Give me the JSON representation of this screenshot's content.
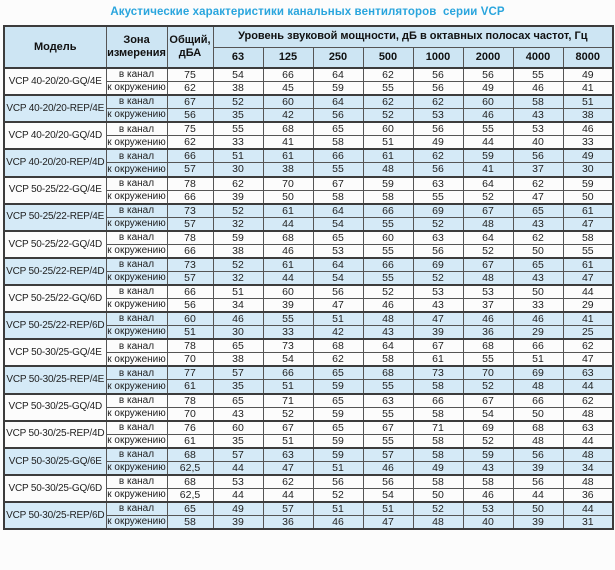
{
  "page": {
    "title": "Акустические характеристики канальных вентиляторов  серии VCP"
  },
  "colors": {
    "accent_title": "#2aa5dd",
    "header_bg": "#cde5f3",
    "band_bg": "#d5eaf7",
    "border": "#3c3c3c"
  },
  "table": {
    "header": {
      "model": "Модель",
      "zone": "Зона\nизмерения",
      "total": "Общий,\nдБА",
      "group": "Уровень звуковой мощности, дБ в октавных полосах частот, Гц",
      "frequencies": [
        "63",
        "125",
        "250",
        "500",
        "1000",
        "2000",
        "4000",
        "8000"
      ]
    },
    "models": [
      {
        "model": "VCP 40-20/20-GQ/4E",
        "shaded": false,
        "measurements": [
          {
            "zone": "в канал",
            "total": "75",
            "levels": [
              "54",
              "66",
              "64",
              "62",
              "56",
              "56",
              "55",
              "49"
            ]
          },
          {
            "zone": "к окружению",
            "total": "62",
            "levels": [
              "38",
              "45",
              "59",
              "55",
              "56",
              "49",
              "46",
              "41"
            ]
          }
        ]
      },
      {
        "model": "VCP 40-20/20-REP/4E",
        "shaded": true,
        "measurements": [
          {
            "zone": "в канал",
            "total": "67",
            "levels": [
              "52",
              "60",
              "64",
              "62",
              "62",
              "60",
              "58",
              "51"
            ]
          },
          {
            "zone": "к окружению",
            "total": "56",
            "levels": [
              "35",
              "42",
              "56",
              "52",
              "53",
              "46",
              "43",
              "38"
            ]
          }
        ]
      },
      {
        "model": "VCP 40-20/20-GQ/4D",
        "shaded": false,
        "measurements": [
          {
            "zone": "в канал",
            "total": "75",
            "levels": [
              "55",
              "68",
              "65",
              "60",
              "56",
              "55",
              "53",
              "46"
            ]
          },
          {
            "zone": "к окружению",
            "total": "62",
            "levels": [
              "33",
              "41",
              "58",
              "51",
              "49",
              "44",
              "40",
              "33"
            ]
          }
        ]
      },
      {
        "model": "VCP 40-20/20-REP/4D",
        "shaded": true,
        "measurements": [
          {
            "zone": "в канал",
            "total": "66",
            "levels": [
              "51",
              "61",
              "66",
              "61",
              "62",
              "59",
              "56",
              "49"
            ]
          },
          {
            "zone": "к окружению",
            "total": "57",
            "levels": [
              "30",
              "38",
              "55",
              "48",
              "56",
              "41",
              "37",
              "30"
            ]
          }
        ]
      },
      {
        "model": "VCP 50-25/22-GQ/4E",
        "shaded": false,
        "measurements": [
          {
            "zone": "в канал",
            "total": "78",
            "levels": [
              "62",
              "70",
              "67",
              "59",
              "63",
              "64",
              "62",
              "59"
            ]
          },
          {
            "zone": "к окружению",
            "total": "66",
            "levels": [
              "39",
              "50",
              "58",
              "58",
              "55",
              "52",
              "47",
              "50"
            ]
          }
        ]
      },
      {
        "model": "VCP 50-25/22-REP/4E",
        "shaded": true,
        "measurements": [
          {
            "zone": "в канал",
            "total": "73",
            "levels": [
              "52",
              "61",
              "64",
              "66",
              "69",
              "67",
              "65",
              "61"
            ]
          },
          {
            "zone": "к окружению",
            "total": "57",
            "levels": [
              "32",
              "44",
              "54",
              "55",
              "52",
              "48",
              "43",
              "47"
            ]
          }
        ]
      },
      {
        "model": "VCP 50-25/22-GQ/4D",
        "shaded": false,
        "measurements": [
          {
            "zone": "в канал",
            "total": "78",
            "levels": [
              "59",
              "68",
              "65",
              "60",
              "63",
              "64",
              "62",
              "58"
            ]
          },
          {
            "zone": "к окружению",
            "total": "66",
            "levels": [
              "38",
              "46",
              "53",
              "55",
              "56",
              "52",
              "50",
              "55"
            ]
          }
        ]
      },
      {
        "model": "VCP 50-25/22-REP/4D",
        "shaded": true,
        "measurements": [
          {
            "zone": "в канал",
            "total": "73",
            "levels": [
              "52",
              "61",
              "64",
              "66",
              "69",
              "67",
              "65",
              "61"
            ]
          },
          {
            "zone": "к окружению",
            "total": "57",
            "levels": [
              "32",
              "44",
              "54",
              "55",
              "52",
              "48",
              "43",
              "47"
            ]
          }
        ]
      },
      {
        "model": "VCP 50-25/22-GQ/6D",
        "shaded": false,
        "measurements": [
          {
            "zone": "в канал",
            "total": "66",
            "levels": [
              "51",
              "60",
              "56",
              "52",
              "53",
              "53",
              "50",
              "44"
            ]
          },
          {
            "zone": "к окружению",
            "total": "56",
            "levels": [
              "34",
              "39",
              "47",
              "46",
              "43",
              "37",
              "33",
              "29"
            ]
          }
        ]
      },
      {
        "model": "VCP 50-25/22-REP/6D",
        "shaded": true,
        "measurements": [
          {
            "zone": "в канал",
            "total": "60",
            "levels": [
              "46",
              "55",
              "51",
              "48",
              "47",
              "46",
              "46",
              "41"
            ]
          },
          {
            "zone": "к окружению",
            "total": "51",
            "levels": [
              "30",
              "33",
              "42",
              "43",
              "39",
              "36",
              "29",
              "25"
            ]
          }
        ]
      },
      {
        "model": "VCP 50-30/25-GQ/4E",
        "shaded": false,
        "measurements": [
          {
            "zone": "в канал",
            "total": "78",
            "levels": [
              "65",
              "73",
              "68",
              "64",
              "67",
              "68",
              "66",
              "62"
            ]
          },
          {
            "zone": "к окружению",
            "total": "70",
            "levels": [
              "38",
              "54",
              "62",
              "58",
              "61",
              "55",
              "51",
              "47"
            ]
          }
        ]
      },
      {
        "model": "VCP 50-30/25-REP/4E",
        "shaded": true,
        "measurements": [
          {
            "zone": "в канал",
            "total": "77",
            "levels": [
              "57",
              "66",
              "65",
              "68",
              "73",
              "70",
              "69",
              "63"
            ]
          },
          {
            "zone": "к окружению",
            "total": "61",
            "levels": [
              "35",
              "51",
              "59",
              "55",
              "58",
              "52",
              "48",
              "44"
            ]
          }
        ]
      },
      {
        "model": "VCP 50-30/25-GQ/4D",
        "shaded": false,
        "measurements": [
          {
            "zone": "в канал",
            "total": "78",
            "levels": [
              "65",
              "71",
              "65",
              "63",
              "66",
              "67",
              "66",
              "62"
            ]
          },
          {
            "zone": "к окружению",
            "total": "70",
            "levels": [
              "43",
              "52",
              "59",
              "55",
              "58",
              "54",
              "50",
              "48"
            ]
          }
        ]
      },
      {
        "model": "VCP 50-30/25-REP/4D",
        "shaded": false,
        "measurements": [
          {
            "zone": "в канал",
            "total": "76",
            "levels": [
              "60",
              "67",
              "65",
              "67",
              "71",
              "69",
              "68",
              "63"
            ]
          },
          {
            "zone": "к окружению",
            "total": "61",
            "levels": [
              "35",
              "51",
              "59",
              "55",
              "58",
              "52",
              "48",
              "44"
            ]
          }
        ]
      },
      {
        "model": "VCP 50-30/25-GQ/6E",
        "shaded": true,
        "measurements": [
          {
            "zone": "в канал",
            "total": "68",
            "levels": [
              "57",
              "63",
              "59",
              "57",
              "58",
              "59",
              "56",
              "48"
            ]
          },
          {
            "zone": "к окружению",
            "total": "62,5",
            "levels": [
              "44",
              "47",
              "51",
              "46",
              "49",
              "43",
              "39",
              "34"
            ]
          }
        ]
      },
      {
        "model": "VCP 50-30/25-GQ/6D",
        "shaded": false,
        "measurements": [
          {
            "zone": "в канал",
            "total": "68",
            "levels": [
              "53",
              "62",
              "56",
              "56",
              "58",
              "58",
              "56",
              "48"
            ]
          },
          {
            "zone": "к окружению",
            "total": "62,5",
            "levels": [
              "44",
              "44",
              "52",
              "54",
              "50",
              "46",
              "44",
              "36"
            ]
          }
        ]
      },
      {
        "model": "VCP 50-30/25-REP/6D",
        "shaded": true,
        "measurements": [
          {
            "zone": "в канал",
            "total": "65",
            "levels": [
              "49",
              "57",
              "51",
              "51",
              "52",
              "53",
              "50",
              "44"
            ]
          },
          {
            "zone": "к окружению",
            "total": "58",
            "levels": [
              "39",
              "36",
              "46",
              "47",
              "48",
              "40",
              "39",
              "31"
            ]
          }
        ]
      }
    ]
  }
}
